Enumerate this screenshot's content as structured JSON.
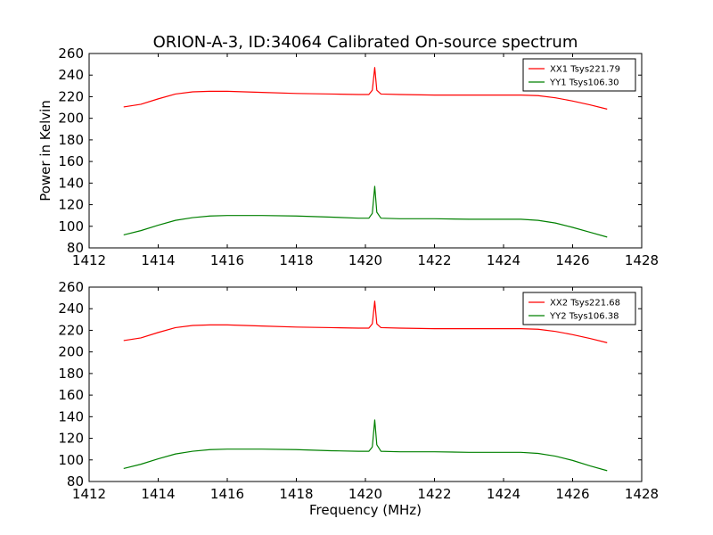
{
  "chart_data": [
    {
      "type": "line",
      "title": "ORION-A-3, ID:34064 Calibrated On-source spectrum",
      "xlabel": "",
      "ylabel": "Power in Kelvin",
      "xlim": [
        1412,
        1428
      ],
      "ylim": [
        80,
        260
      ],
      "xticks": [
        "1412",
        "1414",
        "1416",
        "1418",
        "1420",
        "1422",
        "1424",
        "1426",
        "1428"
      ],
      "yticks": [
        "80",
        "100",
        "120",
        "140",
        "160",
        "180",
        "200",
        "220",
        "240",
        "260"
      ],
      "grid": false,
      "legend_position": "top-right",
      "series": [
        {
          "name": "XX1 Tsys221.79",
          "color": "#ff0000",
          "points": [
            [
              1413.0,
              210.5
            ],
            [
              1413.5,
              213
            ],
            [
              1414.0,
              218
            ],
            [
              1414.5,
              222.5
            ],
            [
              1415.0,
              224.5
            ],
            [
              1415.5,
              225
            ],
            [
              1416.0,
              225
            ],
            [
              1417.0,
              224
            ],
            [
              1418.0,
              223
            ],
            [
              1419.0,
              222.5
            ],
            [
              1419.8,
              222
            ],
            [
              1420.1,
              222
            ],
            [
              1420.2,
              226
            ],
            [
              1420.27,
              247
            ],
            [
              1420.33,
              226
            ],
            [
              1420.45,
              222.5
            ],
            [
              1421.0,
              222
            ],
            [
              1422.0,
              221.5
            ],
            [
              1423.0,
              221.5
            ],
            [
              1424.0,
              221.5
            ],
            [
              1424.5,
              221.5
            ],
            [
              1425.0,
              221
            ],
            [
              1425.5,
              219
            ],
            [
              1426.0,
              216
            ],
            [
              1426.5,
              212.5
            ],
            [
              1427.0,
              208.5
            ]
          ]
        },
        {
          "name": "YY1 Tsys106.30",
          "color": "#008000",
          "points": [
            [
              1413.0,
              92
            ],
            [
              1413.5,
              96
            ],
            [
              1414.0,
              101
            ],
            [
              1414.5,
              105.5
            ],
            [
              1415.0,
              108
            ],
            [
              1415.5,
              109.5
            ],
            [
              1416.0,
              110
            ],
            [
              1417.0,
              110
            ],
            [
              1418.0,
              109.5
            ],
            [
              1419.0,
              108.5
            ],
            [
              1419.8,
              107.5
            ],
            [
              1420.1,
              107.5
            ],
            [
              1420.2,
              112
            ],
            [
              1420.27,
              137
            ],
            [
              1420.33,
              113
            ],
            [
              1420.45,
              107.5
            ],
            [
              1421.0,
              107
            ],
            [
              1422.0,
              107
            ],
            [
              1423.0,
              106.5
            ],
            [
              1424.0,
              106.5
            ],
            [
              1424.5,
              106.5
            ],
            [
              1425.0,
              105.5
            ],
            [
              1425.5,
              103
            ],
            [
              1426.0,
              99
            ],
            [
              1426.5,
              94.5
            ],
            [
              1427.0,
              90
            ]
          ]
        }
      ]
    },
    {
      "type": "line",
      "title": "",
      "xlabel": "Frequency (MHz)",
      "ylabel": "",
      "xlim": [
        1412,
        1428
      ],
      "ylim": [
        80,
        260
      ],
      "xticks": [
        "1412",
        "1414",
        "1416",
        "1418",
        "1420",
        "1422",
        "1424",
        "1426",
        "1428"
      ],
      "yticks": [
        "80",
        "100",
        "120",
        "140",
        "160",
        "180",
        "200",
        "220",
        "240",
        "260"
      ],
      "grid": false,
      "legend_position": "top-right",
      "series": [
        {
          "name": "XX2 Tsys221.68",
          "color": "#ff0000",
          "points": [
            [
              1413.0,
              210.5
            ],
            [
              1413.5,
              213
            ],
            [
              1414.0,
              218
            ],
            [
              1414.5,
              222.5
            ],
            [
              1415.0,
              224.5
            ],
            [
              1415.5,
              225
            ],
            [
              1416.0,
              225
            ],
            [
              1417.0,
              224
            ],
            [
              1418.0,
              223
            ],
            [
              1419.0,
              222.5
            ],
            [
              1419.8,
              222
            ],
            [
              1420.1,
              222
            ],
            [
              1420.2,
              226
            ],
            [
              1420.27,
              247
            ],
            [
              1420.33,
              226
            ],
            [
              1420.45,
              222.5
            ],
            [
              1421.0,
              222
            ],
            [
              1422.0,
              221.5
            ],
            [
              1423.0,
              221.5
            ],
            [
              1424.0,
              221.5
            ],
            [
              1424.5,
              221.5
            ],
            [
              1425.0,
              221
            ],
            [
              1425.5,
              219
            ],
            [
              1426.0,
              216
            ],
            [
              1426.5,
              212.5
            ],
            [
              1427.0,
              208.5
            ]
          ]
        },
        {
          "name": "YY2 Tsys106.38",
          "color": "#008000",
          "points": [
            [
              1413.0,
              92
            ],
            [
              1413.5,
              96
            ],
            [
              1414.0,
              101
            ],
            [
              1414.5,
              105.5
            ],
            [
              1415.0,
              108
            ],
            [
              1415.5,
              109.5
            ],
            [
              1416.0,
              110
            ],
            [
              1417.0,
              110
            ],
            [
              1418.0,
              109.5
            ],
            [
              1419.0,
              108.5
            ],
            [
              1419.8,
              108
            ],
            [
              1420.1,
              108
            ],
            [
              1420.2,
              112
            ],
            [
              1420.27,
              137
            ],
            [
              1420.33,
              114
            ],
            [
              1420.45,
              108
            ],
            [
              1421.0,
              107.5
            ],
            [
              1422.0,
              107.5
            ],
            [
              1423.0,
              107
            ],
            [
              1424.0,
              107
            ],
            [
              1424.5,
              107
            ],
            [
              1425.0,
              106
            ],
            [
              1425.5,
              103.5
            ],
            [
              1426.0,
              99.5
            ],
            [
              1426.5,
              94.5
            ],
            [
              1427.0,
              90
            ]
          ]
        }
      ]
    }
  ]
}
